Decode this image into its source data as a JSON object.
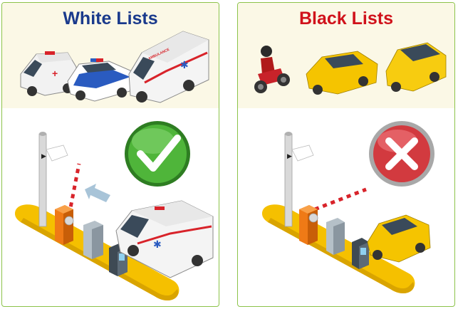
{
  "panels": {
    "white": {
      "title": "White Lists",
      "title_color": "#1a3a8c",
      "status_icon": "check-icon",
      "status_color": "#3a9a2a"
    },
    "black": {
      "title": "Black Lists",
      "title_color": "#d0121b",
      "status_icon": "cross-icon",
      "status_color": "#d23a3f"
    }
  },
  "vehicle_label": "AMBULANCE",
  "colors": {
    "border": "#8cc34a",
    "barrier_base": "#f5c000",
    "barrier_box": "#ef7a16",
    "background": "#fbf8e6"
  }
}
